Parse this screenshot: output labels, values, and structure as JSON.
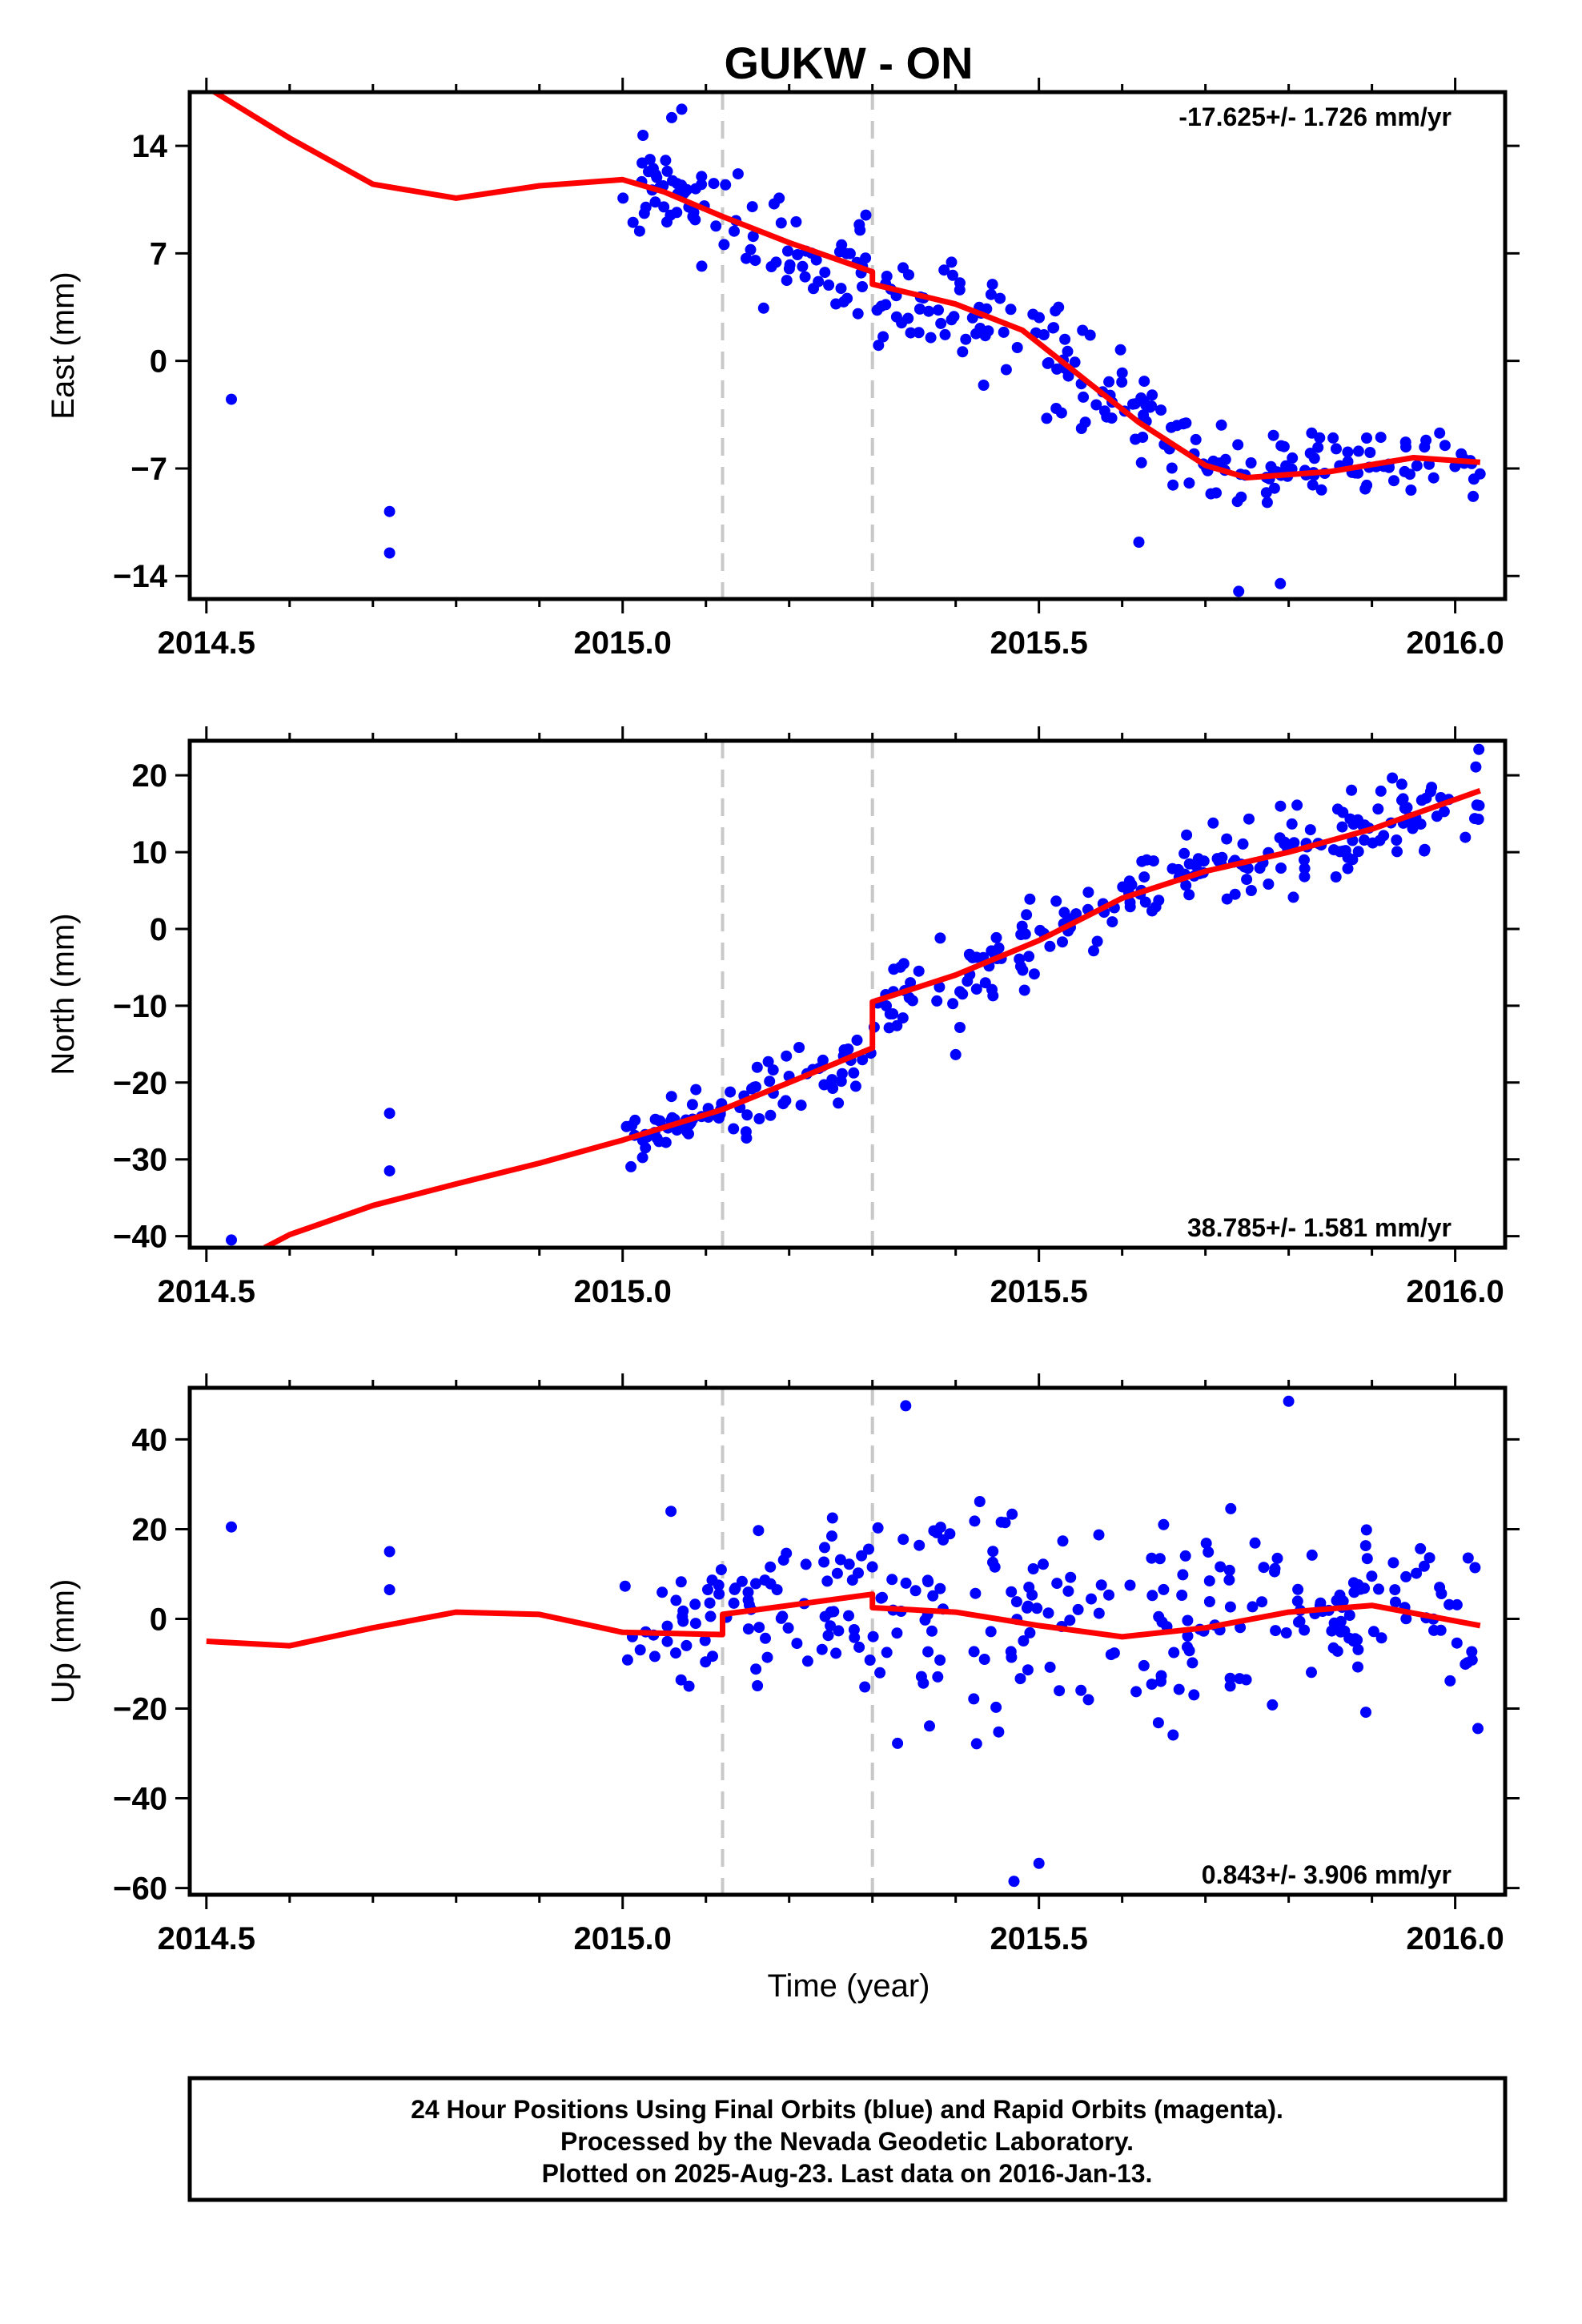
{
  "figure": {
    "title": "GUKW - ON",
    "xlabel": "Time (year)",
    "footer": [
      "24 Hour Positions Using Final Orbits (blue) and Rapid Orbits (magenta).",
      "Processed by the Nevada Geodetic Laboratory.",
      "Plotted on 2025-Aug-23. Last data on 2016-Jan-13."
    ]
  },
  "colors": {
    "final_orbits": "#0000ff",
    "model": "#ff0000",
    "steps": "#c8c8c8",
    "frame": "#000000"
  },
  "chart_data": [
    {
      "type": "scatter",
      "ylabel": "East (mm)",
      "rate": "-17.625+/- 1.726 mm/yr",
      "xlim": [
        2014.48,
        2016.06
      ],
      "ylim": [
        -15.5,
        17.5
      ],
      "xticks": [
        "2014.5",
        "2015.0",
        "2015.5",
        "2016.0"
      ],
      "yticks": [
        "14",
        "7",
        "0",
        "-7",
        "-14"
      ],
      "steps": [
        2015.12,
        2015.3
      ],
      "model": {
        "x": [
          2014.48,
          2014.6,
          2014.7,
          2014.8,
          2014.9,
          2015.0,
          2015.05,
          2015.12,
          2015.2,
          2015.3,
          2015.3,
          2015.4,
          2015.48,
          2015.55,
          2015.62,
          2015.7,
          2015.75,
          2015.85,
          2015.95,
          2016.03
        ],
        "y": [
          18.5,
          14.5,
          11.5,
          10.6,
          11.4,
          11.8,
          11.0,
          9.4,
          7.7,
          5.8,
          5.0,
          3.7,
          2.0,
          -1.0,
          -4.0,
          -6.8,
          -7.6,
          -7.2,
          -6.3,
          -6.6
        ]
      },
      "outliers": {
        "x": [
          2014.53,
          2014.72,
          2014.72,
          2015.62,
          2015.74,
          2015.79
        ],
        "y": [
          -2.5,
          -9.8,
          -12.5,
          -11.8,
          -15.0,
          -14.5
        ]
      },
      "bands": [
        [
          2015.0,
          2015.1,
          12.0,
          2.2
        ],
        [
          2015.1,
          2015.3,
          8.3,
          2.6
        ],
        [
          2015.3,
          2015.48,
          4.0,
          2.4
        ],
        [
          2015.48,
          2015.68,
          -1.5,
          2.6
        ],
        [
          2015.68,
          2015.8,
          -7.5,
          1.8
        ],
        [
          2015.8,
          2015.9,
          -5.2,
          1.6
        ],
        [
          2015.9,
          2016.03,
          -7.0,
          1.5
        ]
      ],
      "n": 290,
      "seed": 11
    },
    {
      "type": "scatter",
      "ylabel": "North (mm)",
      "rate": "38.785+/- 1.581 mm/yr",
      "xlim": [
        2014.48,
        2016.06
      ],
      "ylim": [
        -41.5,
        24.5
      ],
      "xticks": [
        "2014.5",
        "2015.0",
        "2015.5",
        "2016.0"
      ],
      "yticks": [
        "20",
        "10",
        "0",
        "-10",
        "-20",
        "-30",
        "-40"
      ],
      "steps": [
        2015.12,
        2015.3
      ],
      "model": {
        "x": [
          2014.57,
          2014.6,
          2014.7,
          2014.8,
          2014.9,
          2015.0,
          2015.12,
          2015.2,
          2015.3,
          2015.3,
          2015.4,
          2015.5,
          2015.6,
          2015.7,
          2015.8,
          2015.9,
          2016.03
        ],
        "y": [
          -41.5,
          -39.8,
          -36.0,
          -33.2,
          -30.5,
          -27.5,
          -23.5,
          -20.0,
          -15.5,
          -9.5,
          -6.0,
          -1.5,
          4.0,
          7.5,
          10.0,
          13.0,
          18.0
        ]
      },
      "outliers": {
        "x": [
          2014.53,
          2014.72,
          2014.72
        ],
        "y": [
          -40.5,
          -24.0,
          -31.5
        ]
      },
      "bands": [
        [
          2015.0,
          2015.12,
          -27.0,
          2.4
        ],
        [
          2015.12,
          2015.3,
          -19.0,
          3.2
        ],
        [
          2015.3,
          2015.5,
          -5.0,
          3.8
        ],
        [
          2015.5,
          2015.75,
          6.0,
          3.2
        ],
        [
          2015.75,
          2016.03,
          13.5,
          3.2
        ]
      ],
      "n": 290,
      "seed": 23
    },
    {
      "type": "scatter",
      "ylabel": "Up (mm)",
      "rate": "0.843+/- 3.906 mm/yr",
      "xlim": [
        2014.48,
        2016.06
      ],
      "ylim": [
        -61.5,
        51.5
      ],
      "xticks": [
        "2014.5",
        "2015.0",
        "2015.5",
        "2016.0"
      ],
      "yticks": [
        "40",
        "20",
        "0",
        "-20",
        "-40",
        "-60"
      ],
      "steps": [
        2015.12,
        2015.3
      ],
      "model": {
        "x": [
          2014.5,
          2014.6,
          2014.7,
          2014.8,
          2014.9,
          2015.0,
          2015.12,
          2015.12,
          2015.2,
          2015.3,
          2015.3,
          2015.4,
          2015.5,
          2015.6,
          2015.7,
          2015.8,
          2015.9,
          2016.03
        ],
        "y": [
          -5.0,
          -6.0,
          -2.0,
          1.5,
          1.0,
          -3.0,
          -3.5,
          1.0,
          3.0,
          5.5,
          2.5,
          1.5,
          -1.5,
          -4.0,
          -2.0,
          1.5,
          3.0,
          -1.5
        ]
      },
      "outliers": {
        "x": [
          2014.53,
          2014.72,
          2014.72,
          2015.34,
          2015.47,
          2015.5,
          2015.8
        ],
        "y": [
          20.5,
          15.0,
          6.5,
          47.5,
          -58.5,
          -54.5,
          48.5
        ]
      },
      "bands": [
        [
          2015.0,
          2015.12,
          -3.0,
          12.0
        ],
        [
          2015.12,
          2015.3,
          5.0,
          14.0
        ],
        [
          2015.3,
          2015.5,
          2.0,
          16.0
        ],
        [
          2015.5,
          2015.75,
          -5.0,
          14.0
        ],
        [
          2015.75,
          2016.03,
          3.0,
          13.0
        ]
      ],
      "n": 300,
      "seed": 37
    }
  ]
}
